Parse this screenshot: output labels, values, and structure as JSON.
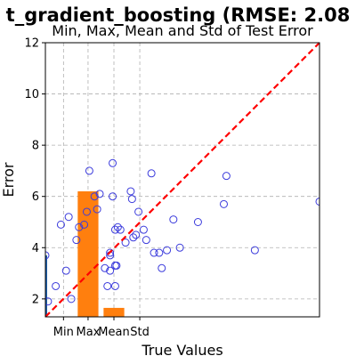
{
  "chart_data": {
    "type": "scatter",
    "suptitle": "t_gradient_boosting (RMSE: 2.08",
    "title": "Min, Max, Mean and Std of Test Error",
    "xlabel": "True Values",
    "ylabel": "Error",
    "ylim": [
      1.3,
      12
    ],
    "xlim": [
      0,
      10.6
    ],
    "yticks": [
      2,
      4,
      6,
      8,
      10,
      12
    ],
    "grid": true,
    "scatter": {
      "marker": "open-circle",
      "color": "#3b3bdc",
      "points": [
        [
          0.0,
          3.7
        ],
        [
          0.1,
          1.9
        ],
        [
          0.4,
          2.5
        ],
        [
          0.6,
          4.9
        ],
        [
          0.8,
          3.1
        ],
        [
          0.9,
          5.2
        ],
        [
          1.0,
          2.0
        ],
        [
          1.2,
          4.3
        ],
        [
          1.3,
          4.8
        ],
        [
          1.5,
          4.9
        ],
        [
          1.6,
          5.4
        ],
        [
          1.7,
          7.0
        ],
        [
          1.9,
          6.0
        ],
        [
          2.0,
          5.5
        ],
        [
          2.1,
          6.1
        ],
        [
          2.3,
          3.2
        ],
        [
          2.4,
          2.5
        ],
        [
          2.5,
          3.7
        ],
        [
          2.5,
          3.8
        ],
        [
          2.5,
          3.1
        ],
        [
          2.6,
          6.0
        ],
        [
          2.6,
          7.3
        ],
        [
          2.7,
          4.7
        ],
        [
          2.7,
          2.5
        ],
        [
          2.7,
          3.3
        ],
        [
          2.75,
          3.3
        ],
        [
          2.8,
          4.8
        ],
        [
          2.9,
          4.7
        ],
        [
          3.1,
          4.2
        ],
        [
          3.3,
          6.2
        ],
        [
          3.35,
          5.9
        ],
        [
          3.4,
          4.4
        ],
        [
          3.5,
          4.5
        ],
        [
          3.6,
          5.4
        ],
        [
          3.8,
          4.7
        ],
        [
          3.9,
          4.3
        ],
        [
          4.1,
          6.9
        ],
        [
          4.2,
          3.8
        ],
        [
          4.4,
          3.8
        ],
        [
          4.5,
          3.2
        ],
        [
          4.7,
          3.9
        ],
        [
          4.95,
          5.1
        ],
        [
          5.2,
          4.0
        ],
        [
          5.9,
          5.0
        ],
        [
          6.9,
          5.7
        ],
        [
          7.0,
          6.8
        ],
        [
          8.1,
          3.9
        ],
        [
          10.6,
          5.8
        ]
      ]
    },
    "reference_line": {
      "style": "dashed",
      "color": "#ff0000",
      "from": [
        0,
        1.3
      ],
      "to": [
        10.6,
        12
      ]
    },
    "bars": {
      "categories": [
        "Min",
        "Max",
        "Mean",
        "Std"
      ],
      "positions": [
        0.7,
        1.65,
        2.65,
        3.65
      ],
      "width": 0.8,
      "values": [
        null,
        6.2,
        1.65,
        null
      ],
      "color": "#ff7f0e"
    },
    "edge_bar": {
      "color": "#1f5fa8",
      "x": 0,
      "value": 3.7
    }
  }
}
